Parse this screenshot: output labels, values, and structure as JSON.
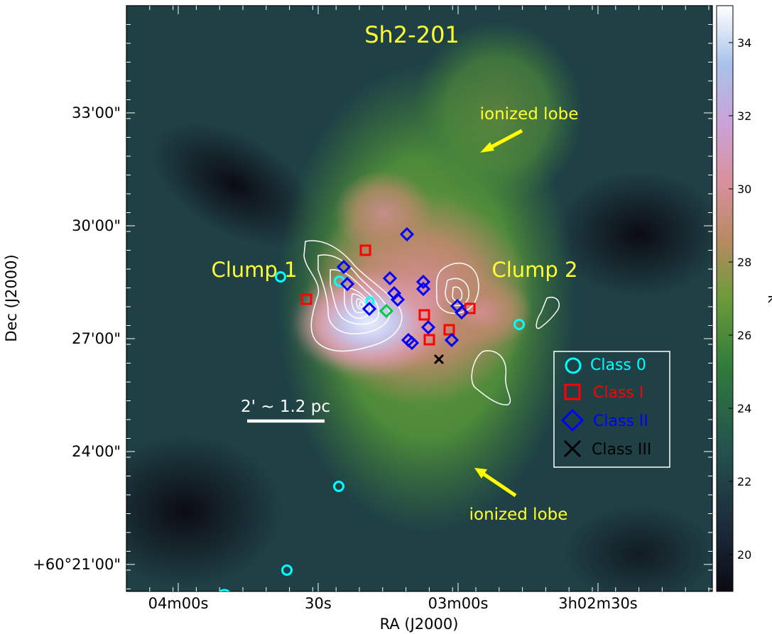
{
  "title": "Sh2-201",
  "axes": {
    "xlabel": "RA (J2000)",
    "ylabel": "Dec (J2000)",
    "xticks": [
      "04m00s",
      "30s",
      "03m00s",
      "3h02m30s"
    ],
    "yticks": [
      "33'00\"",
      "30'00\"",
      "27'00\"",
      "24'00\"",
      "+60°21'00\""
    ]
  },
  "colorbar": {
    "unit": "K",
    "ticks": [
      "20",
      "22",
      "24",
      "26",
      "28",
      "30",
      "32",
      "34"
    ],
    "colors": [
      "#0b0a12",
      "#1c2a3c",
      "#24514e",
      "#2f7a3c",
      "#6b9b3a",
      "#b88a63",
      "#d9909e",
      "#c9a3d8",
      "#a9c2ea",
      "#ffffff"
    ]
  },
  "annotations": {
    "clump1": "Clump 1",
    "clump2": "Clump 2",
    "lobe_top": "ionized lobe",
    "lobe_bottom": "ionized lobe",
    "scalebar": "2' ~ 1.2 pc",
    "label_color": "#ffff33"
  },
  "legend": {
    "items": [
      {
        "label": "Class 0",
        "marker": "circle",
        "color": "#00ffff"
      },
      {
        "label": "Class I",
        "marker": "square",
        "color": "#ff0000"
      },
      {
        "label": "Class II",
        "marker": "diamond",
        "color": "#0000ff"
      },
      {
        "label": "Class III",
        "marker": "cross",
        "color": "#000000"
      }
    ]
  }
}
